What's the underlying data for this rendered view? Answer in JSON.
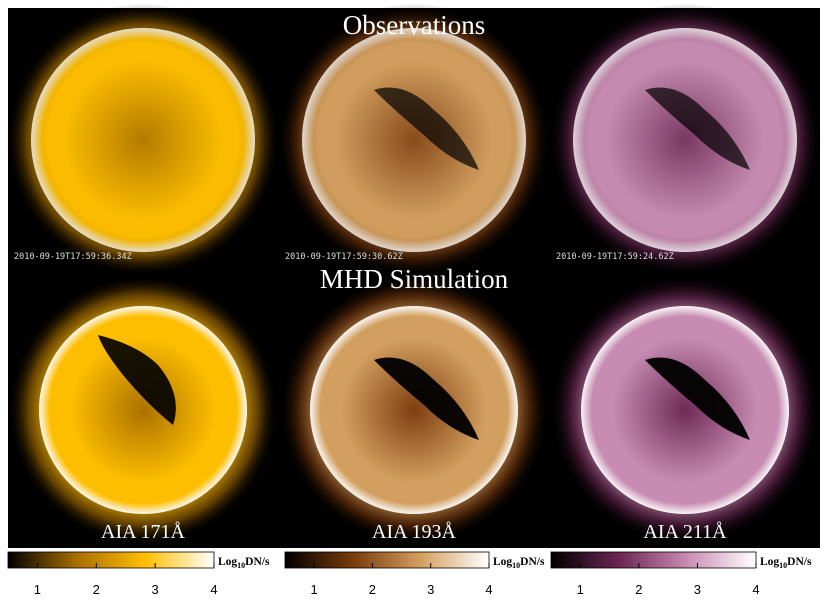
{
  "titles": {
    "top": "Observations",
    "middle": "MHD Simulation"
  },
  "panels": [
    {
      "timestamp": "2010-09-19T17:59:36.34Z",
      "label": "AIA 171Å"
    },
    {
      "timestamp": "2010-09-19T17:59:30.62Z",
      "label": "AIA 193Å"
    },
    {
      "timestamp": "2010-09-19T17:59:24.62Z",
      "label": "AIA 211Å"
    }
  ],
  "colorbars": [
    {
      "colors": [
        "#000000",
        "#a86e00",
        "#ffbf00",
        "#ffffff"
      ],
      "lim": [
        0.5,
        4
      ],
      "ticks": [
        1,
        2,
        3,
        4
      ],
      "unit": {
        "base": "Log",
        "sub": "10",
        "rest": "DN/s"
      }
    },
    {
      "colors": [
        "#000000",
        "#7a3a0c",
        "#d4a060",
        "#ffffff"
      ],
      "lim": [
        0.5,
        4
      ],
      "ticks": [
        1,
        2,
        3,
        4
      ],
      "unit": {
        "base": "Log",
        "sub": "10",
        "rest": "DN/s"
      }
    },
    {
      "colors": [
        "#000000",
        "#6a2652",
        "#c98db3",
        "#ffffff"
      ],
      "lim": [
        0.5,
        4
      ],
      "ticks": [
        1,
        2,
        3,
        4
      ],
      "unit": {
        "base": "Log",
        "sub": "10",
        "rest": "DN/s"
      }
    }
  ]
}
